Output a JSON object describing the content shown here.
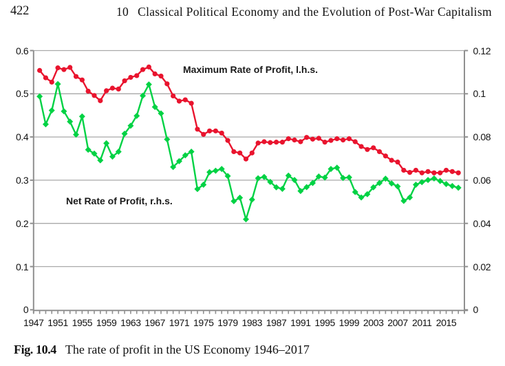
{
  "header": {
    "page_number": "422",
    "chapter_number": "10",
    "chapter_title": "Classical Political Economy and the Evolution of Post-War Capitalism"
  },
  "caption": {
    "label": "Fig. 10.4",
    "text": "The rate of profit in the US Economy 1946–2017"
  },
  "chart_data": {
    "type": "line",
    "title": "",
    "x": [
      1948,
      1949,
      1950,
      1951,
      1952,
      1953,
      1954,
      1955,
      1956,
      1957,
      1958,
      1959,
      1960,
      1961,
      1962,
      1963,
      1964,
      1965,
      1966,
      1967,
      1968,
      1969,
      1970,
      1971,
      1972,
      1973,
      1974,
      1975,
      1976,
      1977,
      1978,
      1979,
      1980,
      1981,
      1982,
      1983,
      1984,
      1985,
      1986,
      1987,
      1988,
      1989,
      1990,
      1991,
      1992,
      1993,
      1994,
      1995,
      1996,
      1997,
      1998,
      1999,
      2000,
      2001,
      2002,
      2003,
      2004,
      2005,
      2006,
      2007,
      2008,
      2009,
      2010,
      2011,
      2012,
      2013,
      2014,
      2015,
      2016,
      2017
    ],
    "x_tick_labels": [
      "1947",
      "1951",
      "1955",
      "1959",
      "1963",
      "1967",
      "1971",
      "1975",
      "1979",
      "1983",
      "1987",
      "1991",
      "1995",
      "1999",
      "2003",
      "2007",
      "2011",
      "2015"
    ],
    "y_left": {
      "label": "",
      "lim": [
        0,
        0.6
      ],
      "tick_labels": [
        "0",
        "0.1",
        "0.2",
        "0.3",
        "0.4",
        "0.5",
        "0.6"
      ]
    },
    "y_right": {
      "label": "",
      "lim": [
        0,
        0.12
      ],
      "tick_labels": [
        "0",
        "0.02",
        "0.04",
        "0.06",
        "0.08",
        "0.1",
        "0.12"
      ]
    },
    "grid": "horizontal",
    "legend": "inline-annotations",
    "series": [
      {
        "name": "Maximum Rate of Profit",
        "label_text": "Maximum Rate of Profit, l.h.s.",
        "axis": "left",
        "color": "#e9142e",
        "marker": "circle",
        "values": [
          0.554,
          0.537,
          0.527,
          0.56,
          0.556,
          0.561,
          0.54,
          0.532,
          0.506,
          0.496,
          0.484,
          0.507,
          0.513,
          0.511,
          0.53,
          0.538,
          0.542,
          0.556,
          0.562,
          0.546,
          0.541,
          0.523,
          0.495,
          0.483,
          0.486,
          0.478,
          0.418,
          0.406,
          0.414,
          0.414,
          0.409,
          0.392,
          0.366,
          0.363,
          0.349,
          0.363,
          0.386,
          0.389,
          0.387,
          0.388,
          0.388,
          0.396,
          0.393,
          0.389,
          0.399,
          0.395,
          0.397,
          0.388,
          0.392,
          0.396,
          0.393,
          0.396,
          0.389,
          0.378,
          0.371,
          0.375,
          0.366,
          0.356,
          0.346,
          0.342,
          0.323,
          0.318,
          0.323,
          0.317,
          0.32,
          0.317,
          0.317,
          0.323,
          0.32,
          0.317
        ]
      },
      {
        "name": "Net Rate of Profit",
        "label_text": "Net Rate of Profit, r.h.s.",
        "axis": "right",
        "color": "#00d244",
        "marker": "diamond",
        "values": [
          0.0988,
          0.0859,
          0.0923,
          0.1045,
          0.0919,
          0.0871,
          0.0811,
          0.0895,
          0.0741,
          0.0723,
          0.0692,
          0.0771,
          0.0709,
          0.0732,
          0.0815,
          0.0852,
          0.0898,
          0.0991,
          0.1043,
          0.0939,
          0.0909,
          0.0789,
          0.0661,
          0.0688,
          0.0715,
          0.0732,
          0.0559,
          0.0579,
          0.0637,
          0.0644,
          0.0652,
          0.0619,
          0.0503,
          0.0519,
          0.0419,
          0.051,
          0.0609,
          0.0615,
          0.0592,
          0.0567,
          0.056,
          0.0621,
          0.0601,
          0.055,
          0.0568,
          0.0587,
          0.0617,
          0.0612,
          0.0652,
          0.0658,
          0.061,
          0.0613,
          0.0545,
          0.052,
          0.0535,
          0.0567,
          0.0587,
          0.0607,
          0.0585,
          0.0571,
          0.0504,
          0.052,
          0.0579,
          0.0591,
          0.0601,
          0.0608,
          0.0596,
          0.0582,
          0.0573,
          0.0565
        ]
      }
    ],
    "colors": {
      "gridline": "#a9a9a9",
      "axis": "#8f8f8f",
      "text": "#111111"
    }
  }
}
